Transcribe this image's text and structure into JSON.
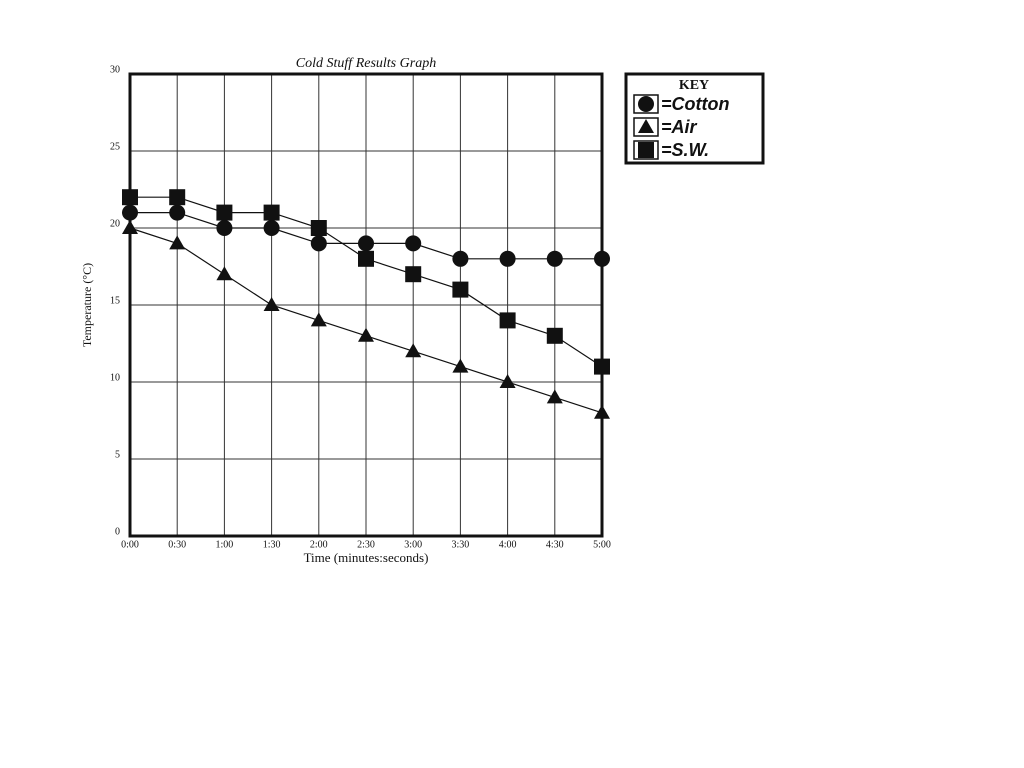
{
  "chart_data": {
    "type": "line",
    "title": "Cold Stuff Results Graph",
    "x_label": "Time (minutes:seconds)",
    "y_label": "Temperature (°C)",
    "categories": [
      "0:00",
      "0:30",
      "1:00",
      "1:30",
      "2:00",
      "2:30",
      "3:00",
      "3:30",
      "4:00",
      "4:30",
      "5:00"
    ],
    "ylim": [
      0,
      30
    ],
    "yticks": [
      0,
      5,
      10,
      15,
      20,
      25,
      30
    ],
    "grid": true,
    "legend_title": "KEY",
    "legend_position": "right",
    "series": [
      {
        "name": "=Cotton",
        "color": "#111111",
        "marker": "circle",
        "values": [
          21,
          21,
          20,
          20,
          19,
          19,
          19,
          18,
          18,
          18,
          18
        ]
      },
      {
        "name": "=Air",
        "color": "#111111",
        "marker": "triangle",
        "values": [
          20,
          19,
          17,
          15,
          14,
          13,
          12,
          11,
          10,
          9,
          8
        ]
      },
      {
        "name": "=S.W.",
        "color": "#111111",
        "marker": "square",
        "values": [
          22,
          22,
          21,
          21,
          20,
          18,
          17,
          16,
          14,
          13,
          11
        ]
      }
    ]
  }
}
